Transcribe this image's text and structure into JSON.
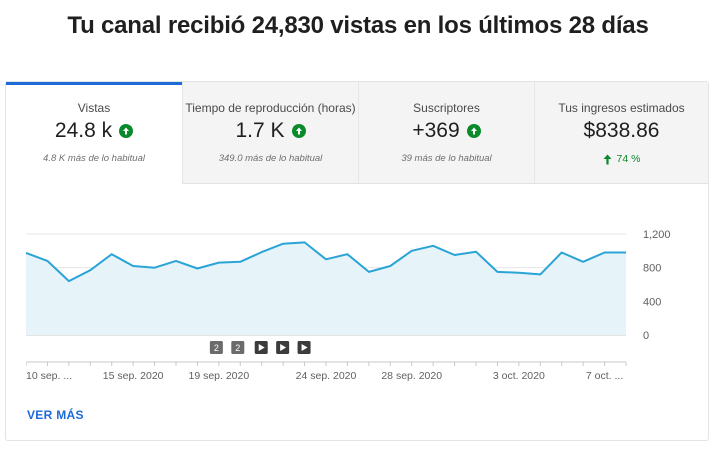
{
  "headline": "Tu canal recibió 24,830 vistas en los últimos 28 días",
  "tabs": [
    {
      "title": "Vistas",
      "value": "24.8 k",
      "sub": "4.8 K más de lo habitual"
    },
    {
      "title": "Tiempo de reproducción (horas)",
      "value": "1.7 K",
      "sub": "349.0 más de lo habitual"
    },
    {
      "title": "Suscriptores",
      "value": "+369",
      "sub": "39 más de lo habitual"
    },
    {
      "title": "Tus ingresos estimados",
      "value": "$838.86",
      "growth": "74 %"
    }
  ],
  "colors": {
    "accent": "#1e6ad6",
    "positive": "#0a8a2a",
    "line": "#2aa3d6",
    "fill": "#e6f4fa"
  },
  "icons": {
    "trend_up": "arrow-up-circle-icon",
    "growth": "arrow-up-icon",
    "video_marker": "play-icon"
  },
  "markers": {
    "numbered": [
      {
        "label": "2",
        "date": "19 sep. 2020"
      },
      {
        "label": "2",
        "date": "21 sep. 2020"
      }
    ],
    "videos": [
      {
        "date": "22 sep. 2020"
      },
      {
        "date": "23 sep. 2020"
      },
      {
        "date": "24 sep. 2020"
      }
    ]
  },
  "chart_data": {
    "type": "area",
    "x_labels": [
      "10 sep. ...",
      "15 sep. 2020",
      "19 sep. 2020",
      "24 sep. 2020",
      "28 sep. 2020",
      "3 oct. 2020",
      "7 oct. ..."
    ],
    "x": [
      "10 sep.",
      "11 sep.",
      "12 sep.",
      "13 sep.",
      "14 sep.",
      "15 sep.",
      "16 sep.",
      "17 sep.",
      "18 sep.",
      "19 sep.",
      "20 sep.",
      "21 sep.",
      "22 sep.",
      "23 sep.",
      "24 sep.",
      "25 sep.",
      "26 sep.",
      "27 sep.",
      "28 sep.",
      "29 sep.",
      "30 sep.",
      "1 oct.",
      "2 oct.",
      "3 oct.",
      "4 oct.",
      "5 oct.",
      "6 oct.",
      "7 oct.",
      "8 oct."
    ],
    "series": [
      {
        "values": [
          975,
          880,
          640,
          770,
          960,
          820,
          800,
          880,
          790,
          860,
          870,
          985,
          1085,
          1100,
          900,
          960,
          750,
          820,
          1000,
          1060,
          950,
          990,
          750,
          740,
          720,
          980,
          870,
          980,
          980
        ]
      }
    ],
    "y_ticks": [
      "1,200",
      "800",
      "400",
      "0"
    ],
    "ylim": [
      0,
      1200
    ],
    "grid": true,
    "y_axis_side": "right"
  },
  "footer_link": "VER MÁS"
}
